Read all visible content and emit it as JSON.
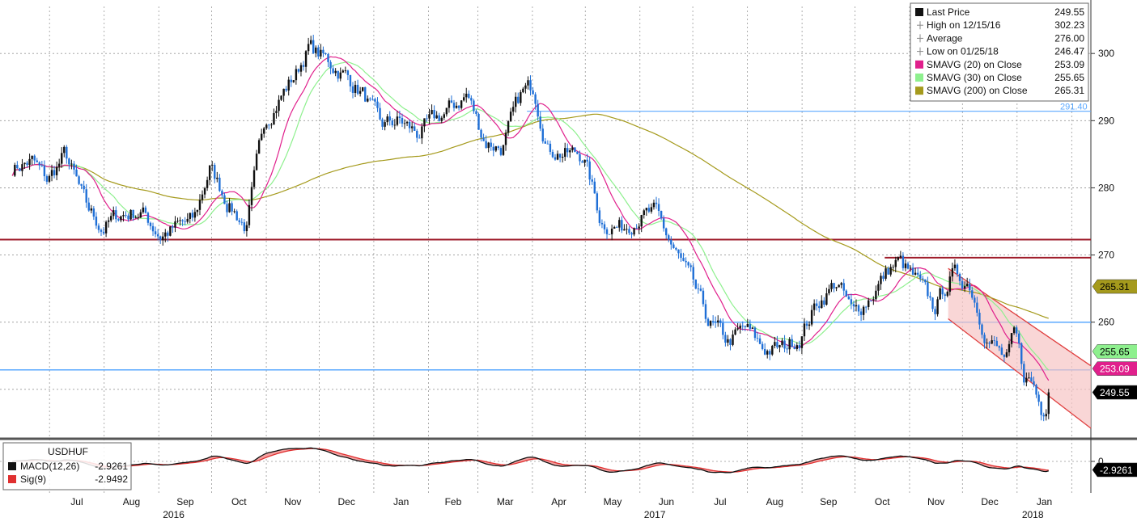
{
  "chart_data": {
    "type": "line",
    "instrument": "USDHUF",
    "years": {
      "y2016": "2016",
      "y2017": "2017",
      "y2018": "2018"
    },
    "month_labels": [
      "Jul",
      "Aug",
      "Sep",
      "Oct",
      "Nov",
      "Dec",
      "Jan",
      "Feb",
      "Mar",
      "Apr",
      "May",
      "Jun",
      "Jul",
      "Aug",
      "Sep",
      "Oct",
      "Nov",
      "Dec",
      "Jan"
    ],
    "price_axis": {
      "ylim": [
        243,
        307
      ],
      "ticks": [
        260,
        270,
        280,
        290,
        300
      ],
      "tick_labels": [
        "260",
        "270",
        "280",
        "290",
        "300"
      ]
    },
    "macd_axis": {
      "ylim": [
        -6,
        4
      ],
      "ticks": [
        0
      ],
      "tick_labels": [
        "0"
      ]
    },
    "price_anchors": [
      [
        "2016-06-20",
        283
      ],
      [
        "2016-07-01",
        284
      ],
      [
        "2016-07-10",
        281
      ],
      [
        "2016-07-20",
        285
      ],
      [
        "2016-08-01",
        277
      ],
      [
        "2016-08-10",
        274
      ],
      [
        "2016-08-20",
        276
      ],
      [
        "2016-09-01",
        276.5
      ],
      [
        "2016-09-12",
        273
      ],
      [
        "2016-09-25",
        274.5
      ],
      [
        "2016-10-01",
        275
      ],
      [
        "2016-10-10",
        283
      ],
      [
        "2016-10-20",
        278
      ],
      [
        "2016-10-31",
        274
      ],
      [
        "2016-11-10",
        290
      ],
      [
        "2016-11-20",
        294
      ],
      [
        "2016-11-28",
        297
      ],
      [
        "2016-12-05",
        301
      ],
      [
        "2016-12-15",
        299
      ],
      [
        "2016-12-25",
        297
      ],
      [
        "2017-01-05",
        294
      ],
      [
        "2017-01-15",
        289
      ],
      [
        "2017-01-25",
        290
      ],
      [
        "2017-02-05",
        288
      ],
      [
        "2017-02-15",
        290
      ],
      [
        "2017-02-25",
        292
      ],
      [
        "2017-03-05",
        294
      ],
      [
        "2017-03-15",
        287
      ],
      [
        "2017-03-25",
        286
      ],
      [
        "2017-04-05",
        294
      ],
      [
        "2017-04-12",
        295
      ],
      [
        "2017-04-20",
        286
      ],
      [
        "2017-05-01",
        285
      ],
      [
        "2017-05-10",
        285
      ],
      [
        "2017-05-20",
        275
      ],
      [
        "2017-06-01",
        274
      ],
      [
        "2017-06-10",
        276
      ],
      [
        "2017-06-20",
        276
      ],
      [
        "2017-06-28",
        272
      ],
      [
        "2017-07-10",
        266
      ],
      [
        "2017-07-20",
        260
      ],
      [
        "2017-07-31",
        257
      ],
      [
        "2017-08-10",
        259
      ],
      [
        "2017-08-20",
        256
      ],
      [
        "2017-08-31",
        256
      ],
      [
        "2017-09-10",
        258
      ],
      [
        "2017-09-20",
        263
      ],
      [
        "2017-10-01",
        266
      ],
      [
        "2017-10-10",
        261
      ],
      [
        "2017-10-20",
        264
      ],
      [
        "2017-10-31",
        268
      ],
      [
        "2017-11-05",
        269
      ],
      [
        "2017-11-15",
        266
      ],
      [
        "2017-11-25",
        262
      ],
      [
        "2017-12-05",
        267
      ],
      [
        "2017-12-15",
        266
      ],
      [
        "2017-12-25",
        258
      ],
      [
        "2018-01-05",
        254
      ],
      [
        "2018-01-10",
        258
      ],
      [
        "2018-01-15",
        252
      ],
      [
        "2018-01-20",
        251
      ],
      [
        "2018-01-25",
        247
      ],
      [
        "2018-01-30",
        249.55
      ]
    ],
    "levels": {
      "resistance_dark": 272.3,
      "upper_blue": 291.4,
      "upper_blue_label": "291.40",
      "mid_blue": 260.0,
      "lower_blue": 252.9,
      "channel_top": 269.6
    },
    "legend": [
      {
        "label": "Last Price",
        "value": "249.55",
        "marker": "square",
        "color": "#111111"
      },
      {
        "label": "High on 12/15/16",
        "value": "302.23",
        "marker": "high-marker",
        "color": "#888888"
      },
      {
        "label": "Average",
        "value": "276.00",
        "marker": "average-marker",
        "color": "#888888"
      },
      {
        "label": "Low on 01/25/18",
        "value": "246.47",
        "marker": "low-marker",
        "color": "#888888"
      },
      {
        "label": "SMAVG (20) on Close",
        "value": "253.09",
        "marker": "square",
        "color": "#e0208c"
      },
      {
        "label": "SMAVG (30) on Close",
        "value": "255.65",
        "marker": "square",
        "color": "#8ef08e"
      },
      {
        "label": "SMAVG (200) on Close",
        "value": "265.31",
        "marker": "square",
        "color": "#a59a1c"
      }
    ],
    "series_colors": {
      "price": "#1f6fd6",
      "sma20": "#e0208c",
      "sma30": "#8ef08e",
      "sma200": "#a59a1c",
      "macd": "#111111",
      "signal": "#e03030",
      "histogram": "#f4a0a0",
      "dark_line": "#9e1a28",
      "blue_line": "#5aa8ff",
      "channel": "#f7c5c5"
    },
    "axis_tags": [
      {
        "value": 265.31,
        "label": "265.31",
        "bg": "#a59a1c",
        "fg": "#000000"
      },
      {
        "value": 255.65,
        "label": "255.65",
        "bg": "#8ef08e",
        "fg": "#000000"
      },
      {
        "value": 253.09,
        "label": "253.09",
        "bg": "#e0208c",
        "fg": "#ffffff"
      },
      {
        "value": 249.55,
        "label": "249.55",
        "bg": "#000000",
        "fg": "#ffffff"
      }
    ],
    "macd_tag": {
      "value": -2.9261,
      "label": "-2.9261"
    },
    "macd_legend": [
      {
        "label": "MACD(12,26)",
        "value": "-2.9261",
        "color": "#111111"
      },
      {
        "label": "Sig(9)",
        "value": "-2.9492",
        "color": "#e03030"
      }
    ]
  }
}
